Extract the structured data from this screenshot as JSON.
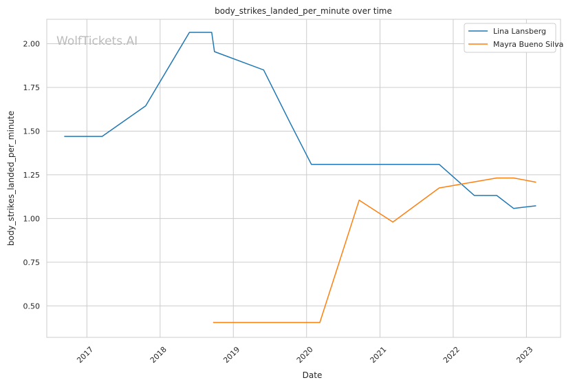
{
  "watermark": "WolfTickets.AI",
  "chart_data": {
    "type": "line",
    "title": "body_strikes_landed_per_minute over time",
    "xlabel": "Date",
    "ylabel": "body_strikes_landed_per_minute",
    "x_ticks": [
      "2017",
      "2018",
      "2019",
      "2020",
      "2021",
      "2022",
      "2023"
    ],
    "y_ticks": [
      "0.50",
      "0.75",
      "1.00",
      "1.25",
      "1.50",
      "1.75",
      "2.00"
    ],
    "xlim": [
      "2016-06-15",
      "2023-06-20"
    ],
    "ylim": [
      0.32,
      2.14
    ],
    "grid": true,
    "legend_position": "top-right",
    "series": [
      {
        "name": "Lina Lansberg",
        "color": "#1f77b4",
        "points": [
          {
            "date": "2016-09-10",
            "value": 1.47
          },
          {
            "date": "2017-03-18",
            "value": 1.47
          },
          {
            "date": "2017-10-21",
            "value": 1.645
          },
          {
            "date": "2018-05-27",
            "value": 2.065
          },
          {
            "date": "2018-09-15",
            "value": 2.065
          },
          {
            "date": "2018-09-29",
            "value": 1.955
          },
          {
            "date": "2019-06-01",
            "value": 1.85
          },
          {
            "date": "2019-10-10",
            "value": 1.55
          },
          {
            "date": "2020-01-25",
            "value": 1.31
          },
          {
            "date": "2021-10-23",
            "value": 1.31
          },
          {
            "date": "2022-04-16",
            "value": 1.132
          },
          {
            "date": "2022-08-06",
            "value": 1.132
          },
          {
            "date": "2022-10-29",
            "value": 1.058
          },
          {
            "date": "2023-02-18",
            "value": 1.073
          }
        ]
      },
      {
        "name": "Mayra Bueno Silva",
        "color": "#ff7f0e",
        "points": [
          {
            "date": "2018-09-22",
            "value": 0.405
          },
          {
            "date": "2020-03-07",
            "value": 0.405
          },
          {
            "date": "2020-09-19",
            "value": 1.105
          },
          {
            "date": "2021-03-06",
            "value": 0.98
          },
          {
            "date": "2021-10-23",
            "value": 1.175
          },
          {
            "date": "2022-08-06",
            "value": 1.232
          },
          {
            "date": "2022-10-29",
            "value": 1.232
          },
          {
            "date": "2023-02-18",
            "value": 1.208
          }
        ]
      }
    ]
  }
}
